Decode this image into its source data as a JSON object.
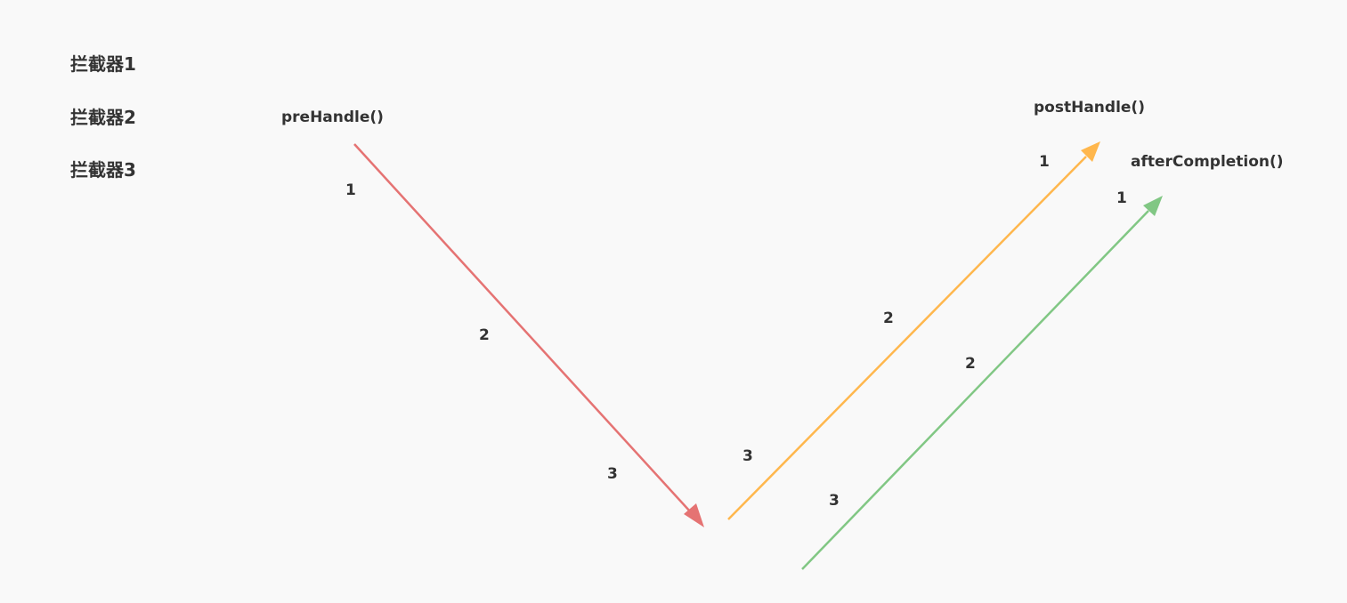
{
  "interceptors": [
    "拦截器1",
    "拦截器2",
    "拦截器3"
  ],
  "methods": {
    "pre": "preHandle()",
    "post": "postHandle()",
    "after": "afterCompletion()"
  },
  "steps": {
    "pre": [
      "1",
      "2",
      "3"
    ],
    "post": [
      "1",
      "2",
      "3"
    ],
    "after": [
      "1",
      "2",
      "3"
    ]
  },
  "colors": {
    "background": "#f9f9f9",
    "text": "#333333",
    "pre_arrow": "#e57373",
    "post_arrow": "#ffb74d",
    "after_arrow": "#81c784"
  }
}
